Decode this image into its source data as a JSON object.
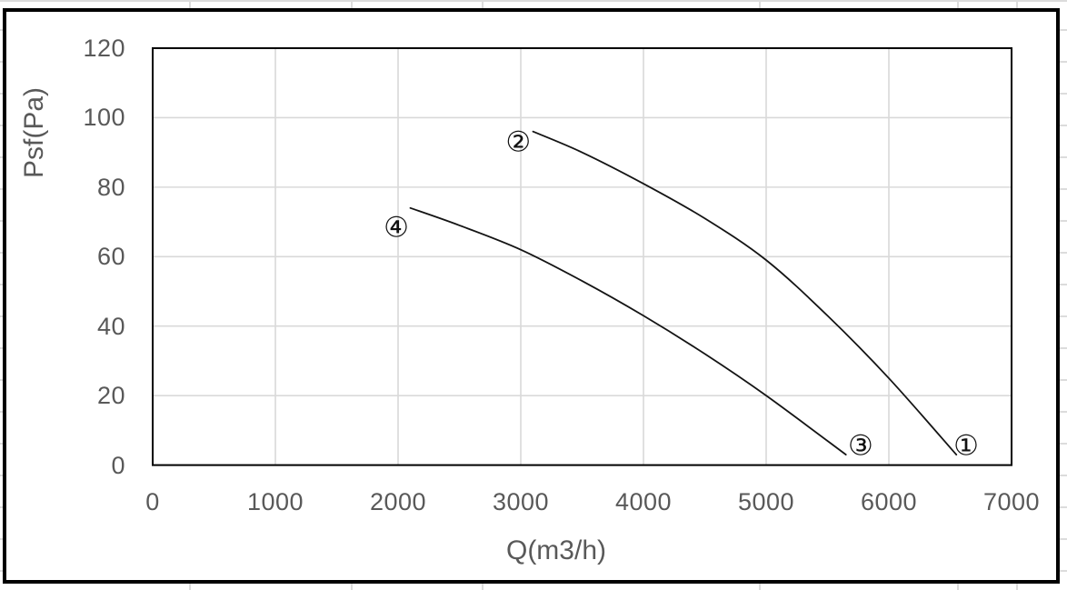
{
  "colors": {
    "axis_text": "#595959",
    "plot_gridline": "#d9d9d9",
    "sheet_gridline": "#dcdcdc",
    "curve": "#141414",
    "chart_border": "#000000",
    "plot_border": "#000000",
    "background": "#ffffff"
  },
  "chart_data": {
    "type": "line",
    "title": "",
    "xlabel": "Q(m3/h)",
    "ylabel": "Psf(Pa)",
    "xlim": [
      0,
      7000
    ],
    "ylim": [
      0,
      120
    ],
    "x_ticks": [
      0,
      1000,
      2000,
      3000,
      4000,
      5000,
      6000,
      7000
    ],
    "y_ticks": [
      0,
      20,
      40,
      60,
      80,
      100,
      120
    ],
    "grid": true,
    "legend": "none",
    "series": [
      {
        "name": "fan-curve-upper",
        "start_marker": "②",
        "end_marker": "①",
        "points": [
          [
            3100,
            96
          ],
          [
            3500,
            90
          ],
          [
            4000,
            81
          ],
          [
            4500,
            71
          ],
          [
            5000,
            59
          ],
          [
            5500,
            43
          ],
          [
            6000,
            25
          ],
          [
            6550,
            3
          ]
        ]
      },
      {
        "name": "fan-curve-lower",
        "start_marker": "④",
        "end_marker": "③",
        "points": [
          [
            2100,
            74
          ],
          [
            2500,
            69
          ],
          [
            3000,
            62
          ],
          [
            3500,
            53
          ],
          [
            4000,
            43
          ],
          [
            4500,
            32
          ],
          [
            5000,
            20
          ],
          [
            5650,
            3
          ]
        ]
      }
    ],
    "point_labels": [
      {
        "text": "②",
        "q": 2980,
        "p": 92.5
      },
      {
        "text": "①",
        "q": 6630,
        "p": 5
      },
      {
        "text": "④",
        "q": 1985,
        "p": 68
      },
      {
        "text": "③",
        "q": 5770,
        "p": 5
      }
    ]
  }
}
